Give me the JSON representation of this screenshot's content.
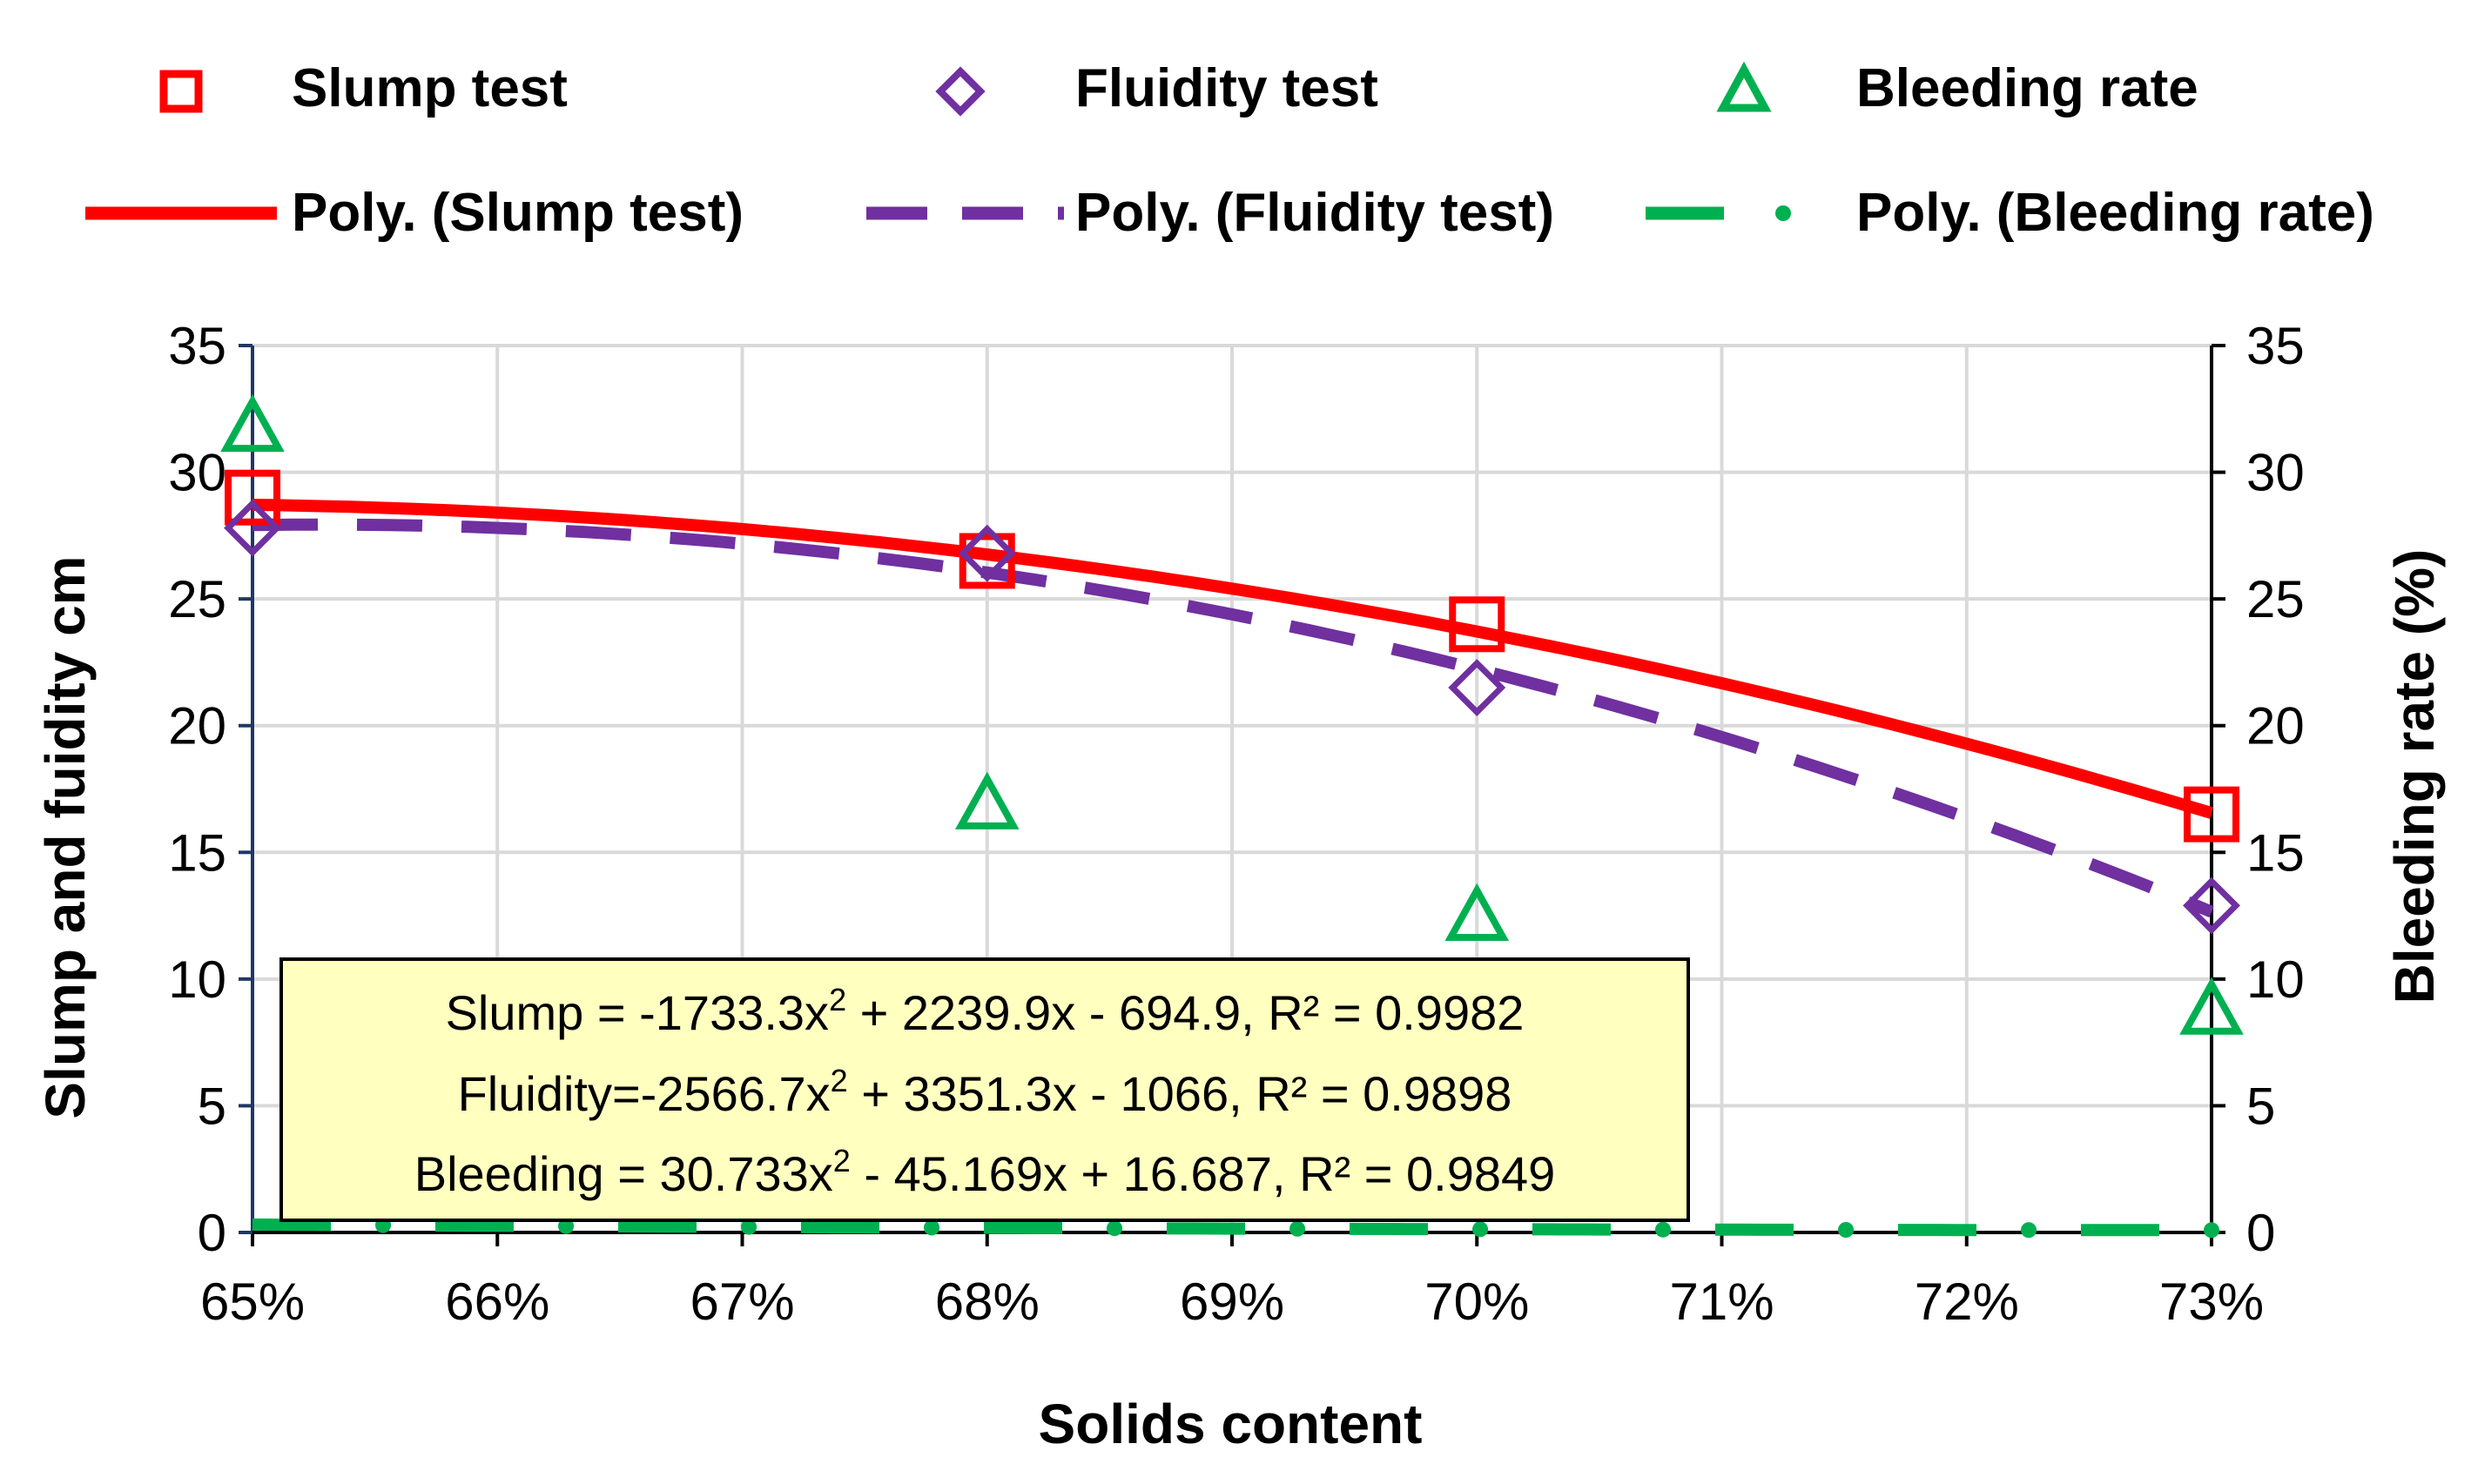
{
  "chart_data": {
    "type": "scatter",
    "xlabel": "Solids content",
    "ylabel_left": "Slump and fuidity cm",
    "ylabel_right": "Bleeding rate (%)",
    "x_ticks": [
      "65%",
      "66%",
      "67%",
      "68%",
      "69%",
      "70%",
      "71%",
      "72%",
      "73%"
    ],
    "xlim": [
      0.65,
      0.73
    ],
    "ylim": [
      0,
      35
    ],
    "y_ticks": [
      "0",
      "5",
      "10",
      "15",
      "20",
      "25",
      "30",
      "35"
    ],
    "y_ticks_right": [
      "0",
      "5",
      "10",
      "15",
      "20",
      "25",
      "30",
      "35"
    ],
    "grid": true,
    "legend_position": "top",
    "legend": {
      "slump": "Slump test",
      "fluidity": "Fluidity test",
      "bleeding": "Bleeding rate",
      "slump_fit": "Poly. (Slump test)",
      "fluidity_fit": "Poly. (Fluidity test)",
      "bleeding_fit": "Poly. (Bleeding rate)"
    },
    "series": [
      {
        "name": "Slump test",
        "axis": "left",
        "marker": "square",
        "color": "#ff0000",
        "x": [
          0.65,
          0.68,
          0.7,
          0.73
        ],
        "values": [
          29,
          26.5,
          24,
          16.5
        ]
      },
      {
        "name": "Fluidity test",
        "axis": "left",
        "marker": "diamond",
        "color": "#7030a0",
        "x": [
          0.65,
          0.68,
          0.7,
          0.73
        ],
        "values": [
          27.8,
          26.8,
          21.5,
          12.9
        ]
      },
      {
        "name": "Bleeding rate",
        "axis": "right",
        "marker": "triangle",
        "color": "#00b050",
        "x": [
          0.65,
          0.68,
          0.7,
          0.73
        ],
        "values": [
          31.7,
          16.8,
          12.4,
          8.7
        ]
      }
    ],
    "trendlines": [
      {
        "name": "Poly. (Slump test)",
        "color": "#ff0000",
        "style": "solid",
        "coefficients": [
          -1733.3,
          2239.9,
          -694.9
        ]
      },
      {
        "name": "Poly. (Fluidity test)",
        "color": "#7030a0",
        "style": "dashed",
        "coefficients": [
          -2566.7,
          3351.3,
          -1066
        ]
      },
      {
        "name": "Poly. (Bleeding rate)",
        "color": "#00b050",
        "style": "dash-dot",
        "coefficients": [
          30.733,
          -45.169,
          16.687
        ]
      }
    ],
    "annotation": {
      "slump_eq": [
        "Slump = -1733.3x",
        "2",
        " + 2239.9x - 694.9, R² = 0.9982"
      ],
      "fluidity_eq": [
        "Fluidity=-2566.7x",
        "2",
        " + 3351.3x - 1066, R² = 0.9898"
      ],
      "bleeding_eq": [
        "Bleeding = 30.733x",
        "2",
        " - 45.169x + 16.687, R² = 0.9849"
      ]
    }
  }
}
